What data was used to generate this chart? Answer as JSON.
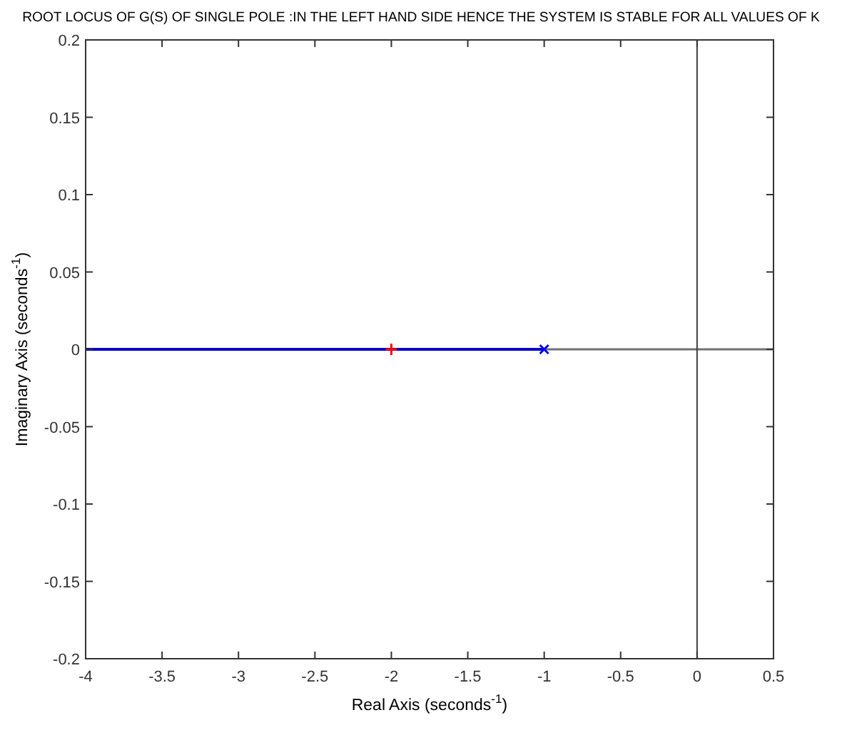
{
  "chart_data": {
    "type": "line",
    "title": "ROOT LOCUS OF G(S) OF SINGLE POLE :IN THE LEFT HAND SIDE HENCE THE SYSTEM IS STABLE FOR ALL VALUES OF K",
    "xlabel": "Real Axis (seconds$^{-1}$)",
    "ylabel": "Imaginary Axis (seconds$^{-1}$)",
    "series": [
      {
        "color": "#0000cc",
        "x": [
          -4,
          -1
        ],
        "values": [
          0,
          0
        ]
      },
      {
        "type": "scatter",
        "color": "#ff0000",
        "x": [
          -2
        ],
        "values": [
          0
        ],
        "marker": "cross"
      },
      {
        "type": "scatter",
        "color": "#0000ff",
        "x": [
          -1
        ],
        "values": [
          0
        ],
        "marker": "cross"
      }
    ],
    "xlim": [
      -4,
      0.5
    ],
    "xticks": [
      -4,
      -3.5,
      -3,
      -2.5,
      -2,
      -1.5,
      -1,
      -0.5,
      0,
      0.5
    ],
    "ylim": [
      -0.2,
      0.2
    ],
    "yticks": [
      -0.2,
      -0.15,
      -0.1,
      -0.05,
      0,
      0.05,
      0.1,
      0.15,
      0.2
    ],
    "ref_lines": [
      {
        "axis": "y",
        "value": 0,
        "color": "#707070"
      },
      {
        "axis": "x",
        "value": 0,
        "color": "#404040"
      }
    ],
    "grid": false
  }
}
